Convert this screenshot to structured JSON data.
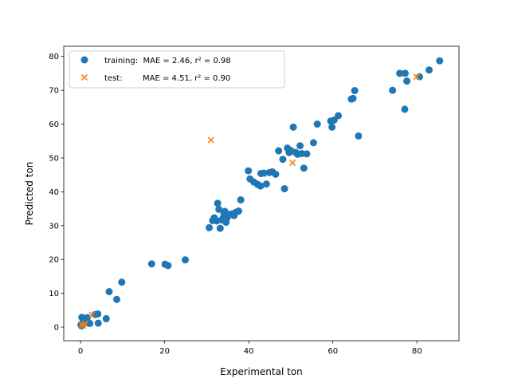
{
  "chart_data": {
    "type": "scatter",
    "title": "",
    "xlabel": "Experimental ton",
    "ylabel": "Predicted ton",
    "xlim": [
      -4,
      90
    ],
    "ylim": [
      -4,
      83
    ],
    "xticks": [
      0,
      20,
      40,
      60,
      80
    ],
    "yticks": [
      0,
      10,
      20,
      30,
      40,
      50,
      60,
      70,
      80
    ],
    "grid": false,
    "legend_position": "top-left",
    "series": [
      {
        "name": "training",
        "label": "training:  MAE = 2.46, r² = 0.98",
        "marker": "circle",
        "color": "#1f77b4",
        "points": [
          [
            0.1,
            0.6
          ],
          [
            0.4,
            0.9
          ],
          [
            0.3,
            2.9
          ],
          [
            0.6,
            1.4
          ],
          [
            0.2,
            0.4
          ],
          [
            1.2,
            1.3
          ],
          [
            1.6,
            2.8
          ],
          [
            2.2,
            1.1
          ],
          [
            3.4,
            3.7
          ],
          [
            4.2,
            1.2
          ],
          [
            4.1,
            3.9
          ],
          [
            6.1,
            2.5
          ],
          [
            6.8,
            10.5
          ],
          [
            8.6,
            8.2
          ],
          [
            9.8,
            13.3
          ],
          [
            16.9,
            18.7
          ],
          [
            20.1,
            18.6
          ],
          [
            20.8,
            18.2
          ],
          [
            24.9,
            19.9
          ],
          [
            30.6,
            29.4
          ],
          [
            31.4,
            31.5
          ],
          [
            31.8,
            32.3
          ],
          [
            32.4,
            31.4
          ],
          [
            32.6,
            36.6
          ],
          [
            32.9,
            34.8
          ],
          [
            33.2,
            29.2
          ],
          [
            33.6,
            31.7
          ],
          [
            33.9,
            32.2
          ],
          [
            34.1,
            33.4
          ],
          [
            34.3,
            34.2
          ],
          [
            34.6,
            31.0
          ],
          [
            34.9,
            32.4
          ],
          [
            35.4,
            33.3
          ],
          [
            36.1,
            33.5
          ],
          [
            36.5,
            33.0
          ],
          [
            37.0,
            34.0
          ],
          [
            37.6,
            34.3
          ],
          [
            38.1,
            37.6
          ],
          [
            39.9,
            46.2
          ],
          [
            40.3,
            43.8
          ],
          [
            41.2,
            42.9
          ],
          [
            42.1,
            42.2
          ],
          [
            42.9,
            45.4
          ],
          [
            42.8,
            41.7
          ],
          [
            43.6,
            45.5
          ],
          [
            44.2,
            42.3
          ],
          [
            44.9,
            45.7
          ],
          [
            45.6,
            45.9
          ],
          [
            46.4,
            45.2
          ],
          [
            47.1,
            52.1
          ],
          [
            48.1,
            49.6
          ],
          [
            48.5,
            40.9
          ],
          [
            49.2,
            52.9
          ],
          [
            49.6,
            51.6
          ],
          [
            50.1,
            52.1
          ],
          [
            50.6,
            59.1
          ],
          [
            51.2,
            51.6
          ],
          [
            51.6,
            51.1
          ],
          [
            52.2,
            53.6
          ],
          [
            52.6,
            51.3
          ],
          [
            53.1,
            47.0
          ],
          [
            53.8,
            51.2
          ],
          [
            55.4,
            54.5
          ],
          [
            56.3,
            60.0
          ],
          [
            59.5,
            60.9
          ],
          [
            59.8,
            59.1
          ],
          [
            60.3,
            61.2
          ],
          [
            61.3,
            62.5
          ],
          [
            64.4,
            67.4
          ],
          [
            64.8,
            67.6
          ],
          [
            65.2,
            69.9
          ],
          [
            66.1,
            56.5
          ],
          [
            74.2,
            70.0
          ],
          [
            75.9,
            75.0
          ],
          [
            77.2,
            75.0
          ],
          [
            77.1,
            64.4
          ],
          [
            77.6,
            72.7
          ],
          [
            80.6,
            74.0
          ],
          [
            82.9,
            76.0
          ],
          [
            85.4,
            78.7
          ]
        ]
      },
      {
        "name": "test",
        "label": "test:        MAE = 4.51, r² = 0.90",
        "marker": "x",
        "color": "#ff7f0e",
        "points": [
          [
            0.2,
            0.8
          ],
          [
            0.6,
            0.5
          ],
          [
            1.1,
            1.0
          ],
          [
            2.7,
            3.6
          ],
          [
            31.0,
            55.3
          ],
          [
            50.4,
            48.6
          ],
          [
            79.9,
            74.0
          ]
        ]
      }
    ]
  }
}
